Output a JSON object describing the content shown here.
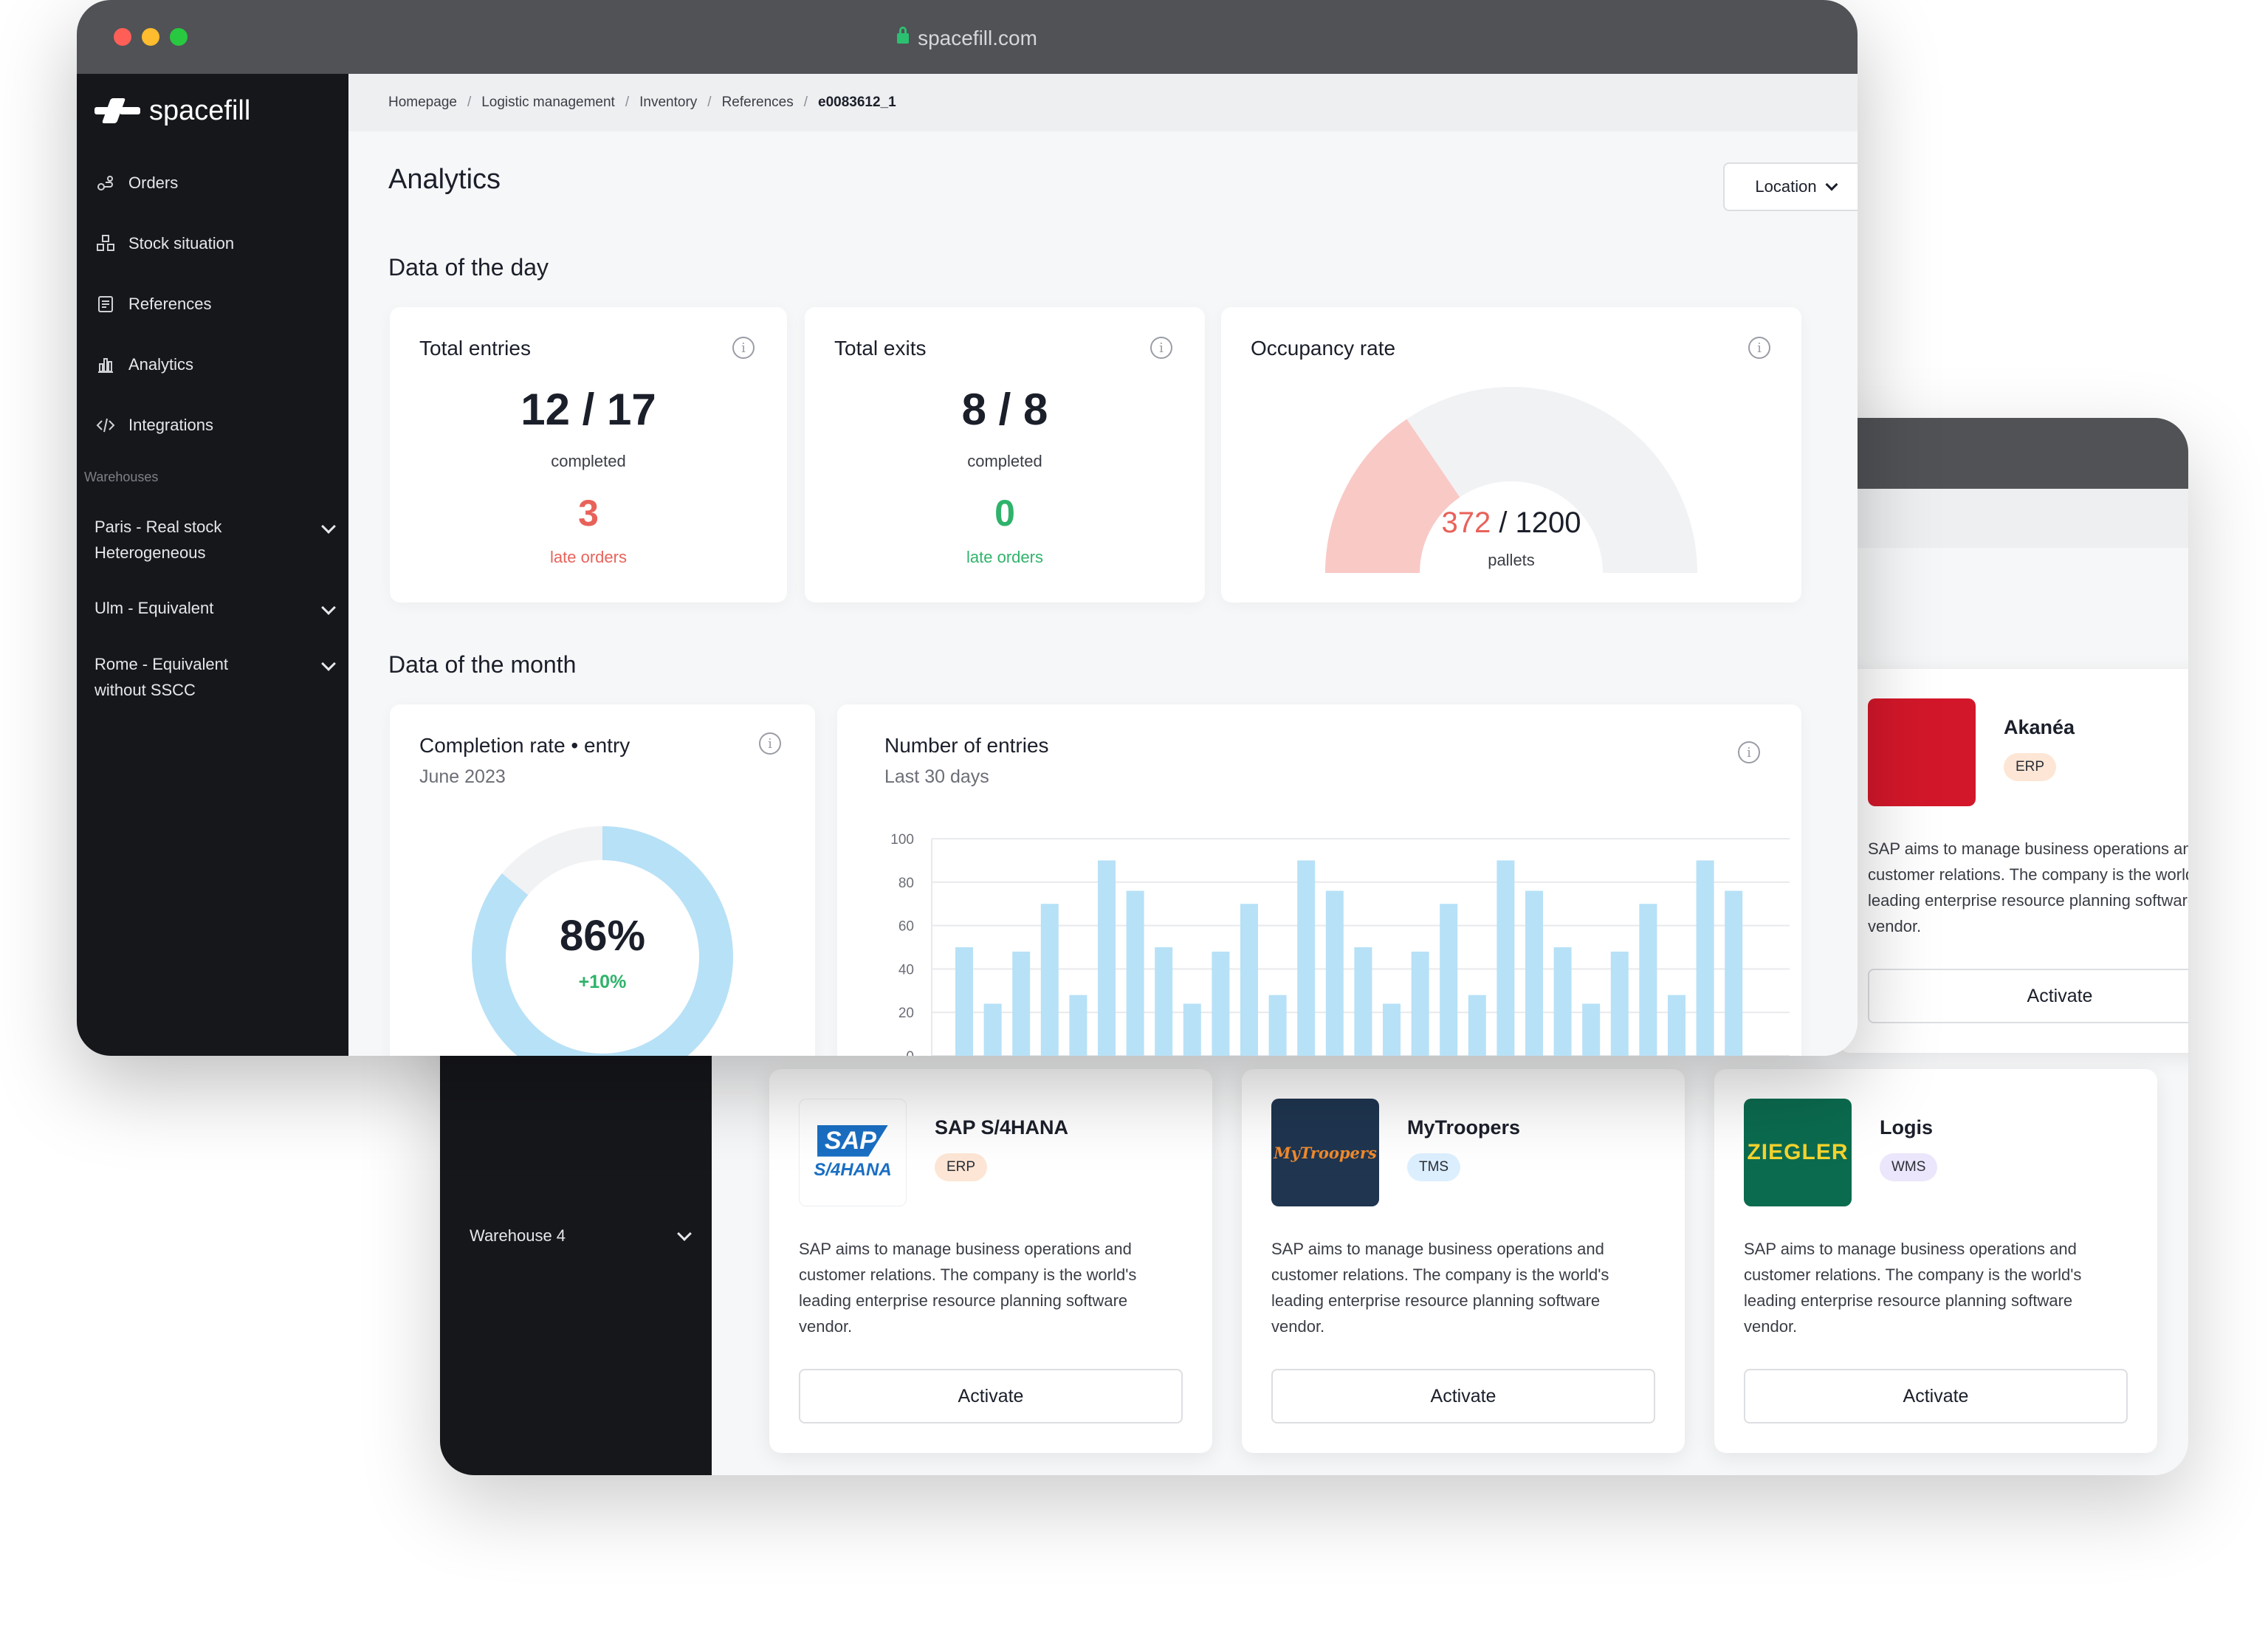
{
  "back_window": {
    "sidebar": {
      "warehouse_item": "Warehouse 4"
    },
    "integrations": [
      {
        "name": "Akanéa",
        "tag": "ERP",
        "tag_color": "#fde6d5",
        "logo": "akanea-logo",
        "description": "SAP aims to manage business operations and customer relations. The company is the world's leading enterprise resource planning software vendor.",
        "button": "Activate"
      },
      {
        "name": "SAP S/4HANA",
        "tag": "ERP",
        "tag_color": "#fde6d5",
        "logo_text_top": "SAP",
        "logo_text_bottom": "S/4HANA",
        "description": "SAP aims to manage business operations and customer relations. The company is the world's leading enterprise resource planning software vendor.",
        "button": "Activate"
      },
      {
        "name": "MyTroopers",
        "tag": "TMS",
        "tag_color": "#dcefff",
        "logo_text": "MyTroopers",
        "description": "SAP aims to manage business operations and customer relations. The company is the world's leading enterprise resource planning software vendor.",
        "button": "Activate"
      },
      {
        "name": "Logis",
        "tag": "WMS",
        "tag_color": "#ebe6fb",
        "logo_text": "ZIEGLER",
        "description": "SAP aims to manage business operations and customer relations. The company is the world's leading enterprise resource planning software vendor.",
        "button": "Activate"
      }
    ]
  },
  "front_window": {
    "url": "spacefill.com",
    "traffic_lights": [
      "#ff5f57",
      "#febc2e",
      "#28c840"
    ],
    "brand": "spacefill",
    "nav": [
      {
        "label": "Orders",
        "icon": "orders-icon"
      },
      {
        "label": "Stock situation",
        "icon": "stock-icon"
      },
      {
        "label": "References",
        "icon": "references-icon"
      },
      {
        "label": "Analytics",
        "icon": "analytics-icon"
      },
      {
        "label": "Integrations",
        "icon": "code-icon"
      }
    ],
    "warehouses_label": "Warehouses",
    "warehouses": [
      {
        "line1": "Paris - Real stock",
        "line2": "Heterogeneous"
      },
      {
        "line1": "Ulm - Equivalent",
        "line2": ""
      },
      {
        "line1": "Rome - Equivalent",
        "line2": "without SSCC"
      }
    ],
    "breadcrumb": [
      "Homepage",
      "Logistic management",
      "Inventory",
      "References",
      "e0083612_1"
    ],
    "page_title": "Analytics",
    "location_button": "Location",
    "day_section": "Data of the day",
    "month_section": "Data of the month",
    "total_entries": {
      "title": "Total entries",
      "value": "12 / 17",
      "caption": "completed",
      "late": "3",
      "late_caption": "late orders",
      "late_color": "#e8625a"
    },
    "total_exits": {
      "title": "Total exits",
      "value": "8 / 8",
      "caption": "completed",
      "late": "0",
      "late_caption": "late orders",
      "late_color": "#2fb36b"
    },
    "occupancy": {
      "title": "Occupancy rate",
      "used": 372,
      "used_text": "372",
      "total_text": "/ 1200",
      "total": 1200,
      "caption": "pallets",
      "used_color": "#f9c9c6",
      "track_color": "#f1f2f4",
      "used_text_color": "#e8625a"
    },
    "completion": {
      "title": "Completion rate • entry",
      "subtitle": "June 2023",
      "percent": 86,
      "percent_text": "86%",
      "delta": "+10%",
      "ring_color": "#b7e1f7",
      "track_color": "#f1f2f4"
    },
    "entries_chart": {
      "title": "Number of entries",
      "subtitle": "Last 30 days"
    }
  },
  "chart_data": {
    "type": "bar",
    "title": "Number of entries",
    "subtitle": "Last 30 days",
    "xlabel": "",
    "ylabel": "",
    "ylim": [
      0,
      100
    ],
    "yticks": [
      "100",
      "80",
      "60",
      "40",
      "20",
      "0"
    ],
    "yticks_values": [
      100,
      80,
      60,
      40,
      20,
      0
    ],
    "grid": true,
    "color": "#b7e1f7",
    "values": [
      50,
      24,
      48,
      70,
      28,
      90,
      76,
      50,
      24,
      48,
      70,
      28,
      90,
      76,
      50,
      24,
      48,
      70,
      28,
      90,
      76,
      50,
      24,
      48,
      70,
      28,
      90,
      76
    ]
  }
}
